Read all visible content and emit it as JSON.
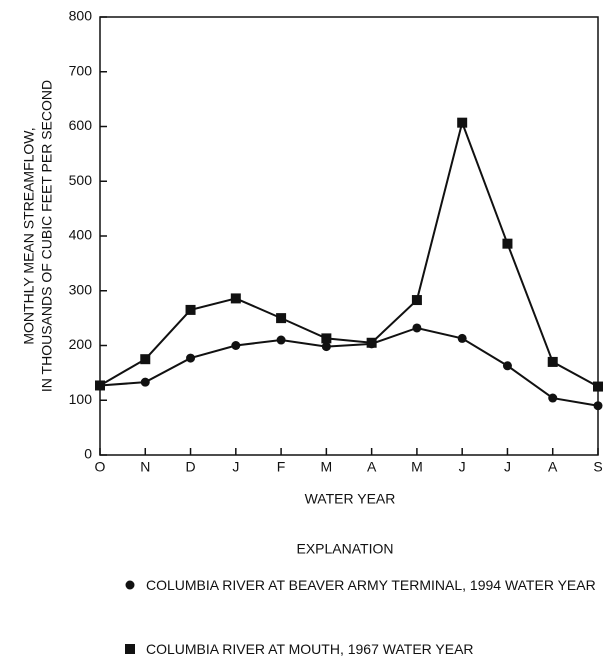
{
  "chart_data": {
    "type": "line",
    "ylabel": [
      "MONTHLY MEAN STREAMFLOW,",
      "IN THOUSANDS OF CUBIC FEET PER SECOND"
    ],
    "xlabel": "WATER YEAR",
    "legend_title": "EXPLANATION",
    "categories": [
      "O",
      "N",
      "D",
      "J",
      "F",
      "M",
      "A",
      "M",
      "J",
      "J",
      "A",
      "S"
    ],
    "series": [
      {
        "name": "COLUMBIA RIVER AT BEAVER ARMY TERMINAL, 1994 WATER YEAR",
        "color": "#111111",
        "marker": "circle",
        "values": [
          127,
          133,
          177,
          200,
          210,
          198,
          203,
          232,
          213,
          163,
          104,
          90
        ]
      },
      {
        "name": "COLUMBIA RIVER AT MOUTH, 1967 WATER YEAR",
        "color": "#111111",
        "marker": "square",
        "values": [
          127,
          175,
          265,
          286,
          250,
          213,
          205,
          283,
          607,
          386,
          170,
          125
        ]
      }
    ],
    "ylim": [
      0,
      800
    ],
    "yticks": [
      0,
      100,
      200,
      300,
      400,
      500,
      600,
      700,
      800
    ],
    "grid": false
  }
}
